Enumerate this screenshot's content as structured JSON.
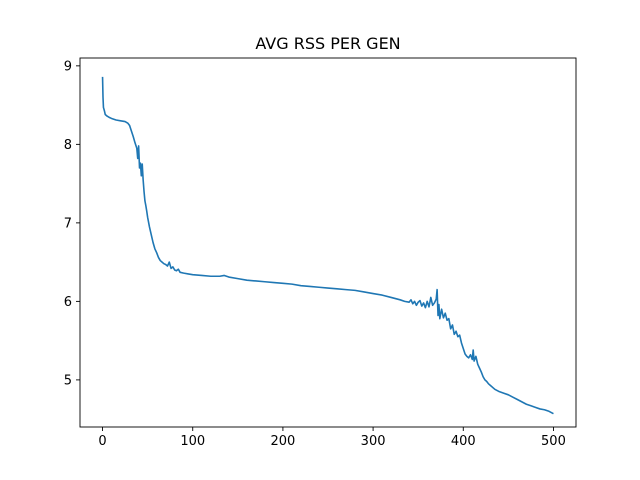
{
  "chart_data": {
    "type": "line",
    "title": "AVG RSS PER GEN",
    "xlabel": "",
    "ylabel": "",
    "xlim": [
      -25,
      525
    ],
    "ylim": [
      4.4,
      9.1
    ],
    "xticks": [
      0,
      100,
      200,
      300,
      400,
      500
    ],
    "yticks": [
      5,
      6,
      7,
      8,
      9
    ],
    "grid": false,
    "legend": "none",
    "series": [
      {
        "color": "#1f77b4",
        "x": [
          0,
          0.5,
          1,
          2,
          3,
          5,
          8,
          10,
          15,
          20,
          25,
          28,
          30,
          32,
          34,
          36,
          38,
          39,
          40,
          41,
          42,
          43,
          44,
          45,
          46,
          47,
          48,
          49,
          50,
          52,
          54,
          56,
          58,
          60,
          62,
          64,
          66,
          68,
          70,
          72,
          74,
          76,
          78,
          80,
          82,
          84,
          86,
          90,
          95,
          100,
          110,
          120,
          130,
          135,
          140,
          150,
          160,
          170,
          180,
          190,
          200,
          210,
          220,
          230,
          240,
          250,
          260,
          270,
          280,
          290,
          300,
          310,
          320,
          330,
          335,
          340,
          342,
          344,
          346,
          348,
          350,
          352,
          354,
          356,
          358,
          360,
          362,
          364,
          366,
          368,
          370,
          371,
          372,
          373,
          374,
          376,
          378,
          380,
          382,
          384,
          386,
          388,
          390,
          392,
          394,
          396,
          398,
          400,
          402,
          404,
          406,
          408,
          410,
          411,
          412,
          414,
          416,
          418,
          420,
          422,
          424,
          426,
          428,
          430,
          435,
          440,
          445,
          450,
          455,
          460,
          465,
          470,
          475,
          480,
          485,
          490,
          495,
          500
        ],
        "values": [
          8.86,
          8.6,
          8.47,
          8.43,
          8.38,
          8.36,
          8.34,
          8.33,
          8.31,
          8.3,
          8.29,
          8.27,
          8.24,
          8.17,
          8.1,
          8.02,
          7.95,
          7.82,
          7.98,
          7.7,
          7.76,
          7.6,
          7.75,
          7.55,
          7.4,
          7.28,
          7.22,
          7.15,
          7.07,
          6.95,
          6.85,
          6.75,
          6.67,
          6.62,
          6.56,
          6.52,
          6.5,
          6.48,
          6.47,
          6.45,
          6.5,
          6.42,
          6.44,
          6.4,
          6.39,
          6.41,
          6.37,
          6.36,
          6.35,
          6.34,
          6.33,
          6.32,
          6.32,
          6.33,
          6.31,
          6.29,
          6.27,
          6.26,
          6.25,
          6.24,
          6.23,
          6.22,
          6.2,
          6.19,
          6.18,
          6.17,
          6.16,
          6.15,
          6.14,
          6.12,
          6.1,
          6.08,
          6.05,
          6.02,
          6.0,
          5.99,
          6.02,
          5.97,
          6.0,
          5.95,
          5.99,
          6.01,
          5.94,
          5.98,
          5.92,
          6.0,
          5.93,
          6.05,
          5.95,
          5.98,
          6.03,
          6.15,
          5.82,
          5.96,
          5.78,
          5.9,
          5.79,
          5.85,
          5.76,
          5.78,
          5.65,
          5.7,
          5.58,
          5.62,
          5.55,
          5.57,
          5.47,
          5.4,
          5.33,
          5.3,
          5.28,
          5.32,
          5.26,
          5.38,
          5.24,
          5.3,
          5.2,
          5.15,
          5.1,
          5.04,
          5.0,
          4.98,
          4.95,
          4.93,
          4.88,
          4.85,
          4.83,
          4.81,
          4.78,
          4.75,
          4.72,
          4.69,
          4.67,
          4.65,
          4.63,
          4.62,
          4.6,
          4.57
        ]
      }
    ]
  }
}
